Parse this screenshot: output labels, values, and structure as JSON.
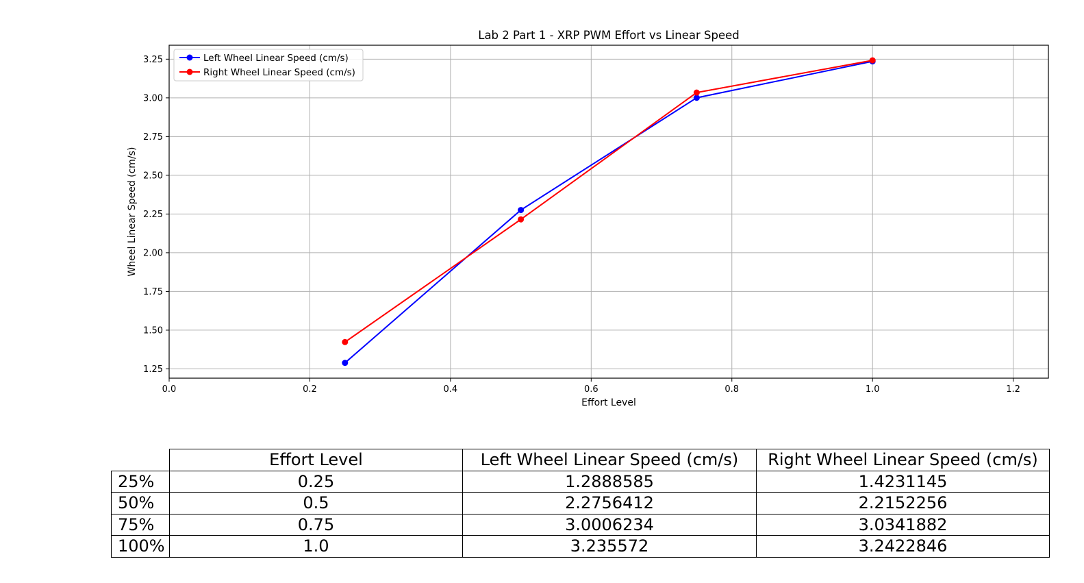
{
  "chart_data": {
    "type": "line",
    "title": "Lab 2 Part 1 - XRP PWM Effort vs Linear Speed",
    "xlabel": "Effort Level",
    "ylabel": "Wheel Linear Speed (cm/s)",
    "xlim": [
      0.0,
      1.25
    ],
    "ylim": [
      1.19,
      3.34
    ],
    "xticks": [
      0.0,
      0.2,
      0.4,
      0.6,
      0.8,
      1.0,
      1.2
    ],
    "xtick_labels": [
      "0.0",
      "0.2",
      "0.4",
      "0.6",
      "0.8",
      "1.0",
      "1.2"
    ],
    "yticks": [
      1.25,
      1.5,
      1.75,
      2.0,
      2.25,
      2.5,
      2.75,
      3.0,
      3.25
    ],
    "ytick_labels": [
      "1.25",
      "1.50",
      "1.75",
      "2.00",
      "2.25",
      "2.50",
      "2.75",
      "3.00",
      "3.25"
    ],
    "grid": true,
    "legend_position": "top-left",
    "x": [
      0.25,
      0.5,
      0.75,
      1.0
    ],
    "series": [
      {
        "name": "Left Wheel Linear Speed (cm/s)",
        "color": "#0000ff",
        "values": [
          1.2888585,
          2.2756412,
          3.0006234,
          3.235572
        ]
      },
      {
        "name": "Right Wheel Linear Speed (cm/s)",
        "color": "#ff0000",
        "values": [
          1.4231145,
          2.2152256,
          3.0341882,
          3.2422846
        ]
      }
    ]
  },
  "table": {
    "columns": [
      "Effort Level",
      "Left Wheel Linear Speed (cm/s)",
      "Right Wheel Linear Speed (cm/s)"
    ],
    "rows": [
      {
        "label": "25%",
        "cells": [
          "0.25",
          "1.2888585",
          "1.4231145"
        ]
      },
      {
        "label": "50%",
        "cells": [
          "0.5",
          "2.2756412",
          "2.2152256"
        ]
      },
      {
        "label": "75%",
        "cells": [
          "0.75",
          "3.0006234",
          "3.0341882"
        ]
      },
      {
        "label": "100%",
        "cells": [
          "1.0",
          "3.235572",
          "3.2422846"
        ]
      }
    ]
  }
}
